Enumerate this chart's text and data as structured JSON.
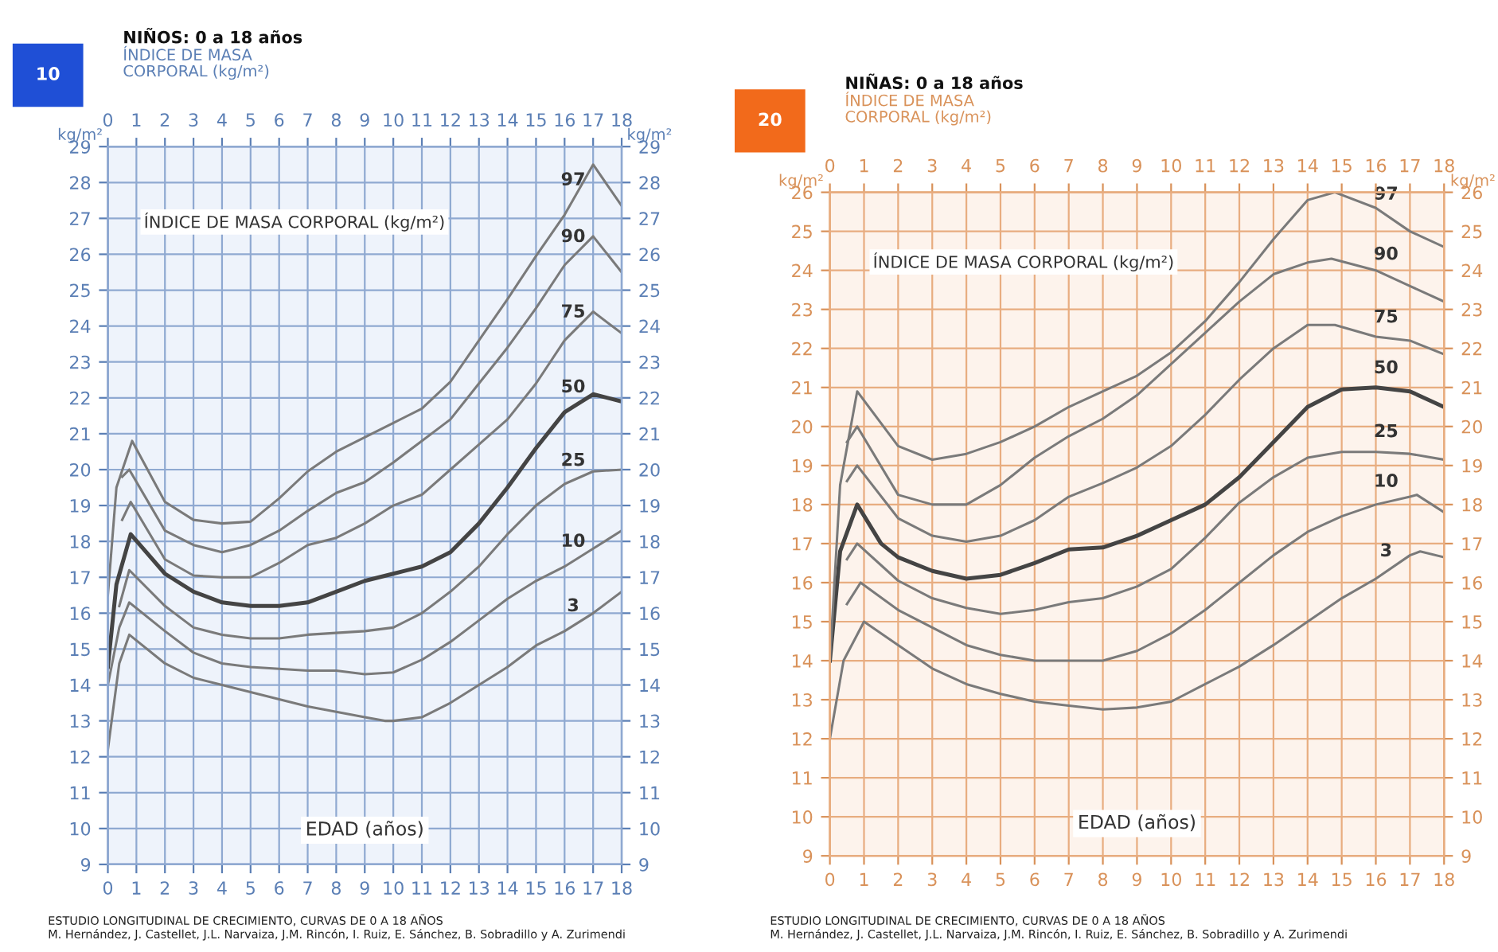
{
  "chart_data": [
    {
      "type": "line",
      "title": "NIÑOS: 0 a 18 años",
      "subtitle": "ÍNDICE DE MASA\nCORPORAL (kg/m²)",
      "xlabel": "EDAD (años)",
      "ylabel": "kg/m²",
      "y2label": "kg/m²",
      "annotations": [
        "10",
        "ÍNDICE DE MASA CORPORAL (kg/m²)",
        "ESTUDIO LONGITUDINAL DE CRECIMIENTO, CURVAS DE 0 A 18 AÑOS\nM. Hernández, J. Castellet, J.L. Narvaiza, J.M. Rincón, I. Ruiz, E. Sánchez, B. Sobradillo y A. Zurimendi"
      ],
      "xlim": [
        0,
        18
      ],
      "xticks": [
        0,
        1,
        2,
        3,
        4,
        5,
        6,
        7,
        8,
        9,
        10,
        11,
        12,
        13,
        14,
        15,
        16,
        17,
        18
      ],
      "x2lim": [
        0,
        18
      ],
      "x2ticks": [
        0,
        1,
        2,
        3,
        4,
        5,
        6,
        7,
        8,
        9,
        10,
        11,
        12,
        13,
        14,
        15,
        16,
        17,
        18
      ],
      "ylim": [
        9,
        29
      ],
      "yticks": [
        9,
        10,
        11,
        12,
        13,
        14,
        15,
        16,
        17,
        18,
        19,
        20,
        21,
        22,
        23,
        24,
        25,
        26,
        27,
        28,
        29
      ],
      "y2lim": [
        9,
        29
      ],
      "y2ticks": [
        9,
        10,
        11,
        12,
        13,
        14,
        15,
        16,
        17,
        18,
        19,
        20,
        21,
        22,
        23,
        24,
        25,
        26,
        27,
        28,
        29
      ],
      "grid": true,
      "marker": "none",
      "line_style": "solid",
      "series": [
        {
          "name": "3",
          "color": "#7a7a7a",
          "x": [
            0,
            0.4,
            0.75,
            2,
            3,
            4,
            5,
            6,
            7,
            8,
            9,
            9.7,
            10,
            11,
            12,
            13,
            14,
            15,
            16,
            17,
            18
          ],
          "values": [
            12.2,
            14.6,
            15.4,
            14.6,
            14.2,
            14.0,
            13.8,
            13.6,
            13.4,
            13.25,
            13.1,
            13.0,
            13.0,
            13.1,
            13.5,
            14.0,
            14.5,
            15.1,
            15.5,
            16.0,
            16.6
          ]
        },
        {
          "name": "10",
          "color": "#7a7a7a",
          "x": [
            0,
            0.4,
            0.75,
            2,
            3,
            4,
            5,
            6,
            7,
            8,
            9,
            10,
            11,
            12,
            13,
            14,
            15,
            16,
            17,
            18
          ],
          "values": [
            14.0,
            15.6,
            16.3,
            15.5,
            14.9,
            14.6,
            14.5,
            14.45,
            14.4,
            14.4,
            14.3,
            14.35,
            14.7,
            15.2,
            15.8,
            16.4,
            16.9,
            17.3,
            17.8,
            18.3
          ]
        },
        {
          "name": "25",
          "color": "#7a7a7a",
          "x": [
            0.4,
            0.75,
            2,
            3,
            4,
            5,
            6,
            7,
            8,
            9,
            10,
            11,
            12,
            13,
            14,
            15,
            16,
            17,
            18
          ],
          "values": [
            16.2,
            17.2,
            16.2,
            15.6,
            15.4,
            15.3,
            15.3,
            15.4,
            15.45,
            15.5,
            15.6,
            16.0,
            16.6,
            17.3,
            18.2,
            19.0,
            19.6,
            19.95,
            20.0
          ]
        },
        {
          "name": "50",
          "color": "#444444",
          "x": [
            0,
            0.3,
            0.8,
            2,
            3,
            4,
            5,
            6,
            7,
            8,
            9,
            10,
            11,
            12,
            13,
            14,
            15,
            16,
            17,
            18
          ],
          "values": [
            14.5,
            16.8,
            18.2,
            17.1,
            16.6,
            16.3,
            16.2,
            16.2,
            16.3,
            16.6,
            16.9,
            17.1,
            17.3,
            17.7,
            18.5,
            19.5,
            20.6,
            21.6,
            22.1,
            21.9
          ]
        },
        {
          "name": "75",
          "color": "#7a7a7a",
          "x": [
            0.5,
            0.8,
            2,
            3,
            4,
            5,
            6,
            7,
            8,
            9,
            10,
            11,
            12,
            13,
            14,
            15,
            16,
            17,
            18
          ],
          "values": [
            18.6,
            19.1,
            17.5,
            17.05,
            17.0,
            17.0,
            17.4,
            17.9,
            18.1,
            18.5,
            19.0,
            19.3,
            20.0,
            20.7,
            21.4,
            22.4,
            23.6,
            24.4,
            23.8
          ]
        },
        {
          "name": "90",
          "color": "#7a7a7a",
          "x": [
            0.5,
            0.75,
            2,
            3,
            4,
            5,
            6,
            7,
            8,
            9,
            10,
            11,
            12,
            13,
            14,
            15,
            16,
            17,
            18
          ],
          "values": [
            19.8,
            20.0,
            18.3,
            17.9,
            17.7,
            17.9,
            18.3,
            18.85,
            19.35,
            19.65,
            20.2,
            20.8,
            21.4,
            22.4,
            23.4,
            24.5,
            25.7,
            26.5,
            25.5
          ]
        },
        {
          "name": "97",
          "color": "#7a7a7a",
          "x": [
            0,
            0.3,
            0.85,
            2,
            3,
            4,
            5,
            6,
            7,
            8,
            9,
            10,
            11,
            12,
            13,
            14,
            15,
            16,
            17,
            18
          ],
          "values": [
            16.5,
            19.5,
            20.8,
            19.1,
            18.6,
            18.5,
            18.55,
            19.2,
            19.95,
            20.5,
            20.9,
            21.3,
            21.7,
            22.45,
            23.6,
            24.75,
            25.95,
            27.1,
            28.5,
            27.35
          ]
        }
      ]
    },
    {
      "type": "line",
      "title": "NIÑAS: 0 a 18 años",
      "subtitle": "ÍNDICE DE MASA\nCORPORAL (kg/m²)",
      "xlabel": "EDAD (años)",
      "ylabel": "kg/m²",
      "y2label": "kg/m²",
      "annotations": [
        "20",
        "ÍNDICE DE MASA CORPORAL (kg/m²)",
        "ESTUDIO LONGITUDINAL DE CRECIMIENTO, CURVAS DE 0 A 18 AÑOS\nM. Hernández, J. Castellet, J.L. Narvaiza, J.M. Rincón, I. Ruiz, E. Sánchez, B. Sobradillo y A. Zurimendi"
      ],
      "xlim": [
        0,
        18
      ],
      "xticks": [
        0,
        1,
        2,
        3,
        4,
        5,
        6,
        7,
        8,
        9,
        10,
        11,
        12,
        13,
        14,
        15,
        16,
        17,
        18
      ],
      "x2lim": [
        0,
        18
      ],
      "x2ticks": [
        0,
        1,
        2,
        3,
        4,
        5,
        6,
        7,
        8,
        9,
        10,
        11,
        12,
        13,
        14,
        15,
        16,
        17,
        18
      ],
      "ylim": [
        9,
        26
      ],
      "yticks": [
        9,
        10,
        11,
        12,
        13,
        14,
        15,
        16,
        17,
        18,
        19,
        20,
        21,
        22,
        23,
        24,
        25,
        26
      ],
      "y2lim": [
        9,
        26
      ],
      "y2ticks": [
        9,
        10,
        11,
        12,
        13,
        14,
        15,
        16,
        17,
        18,
        19,
        20,
        21,
        22,
        23,
        24,
        25,
        26
      ],
      "grid": true,
      "marker": "none",
      "line_style": "solid",
      "series": [
        {
          "name": "3",
          "color": "#7a7a7a",
          "x": [
            0,
            0.4,
            1,
            2,
            3,
            4,
            5,
            6,
            7,
            8,
            9,
            10,
            11,
            12,
            13,
            14,
            15,
            16,
            17,
            17.3,
            18
          ],
          "values": [
            12.0,
            14.0,
            15.0,
            14.4,
            13.8,
            13.4,
            13.15,
            12.95,
            12.85,
            12.75,
            12.8,
            12.95,
            13.4,
            13.85,
            14.4,
            15.0,
            15.6,
            16.1,
            16.7,
            16.8,
            16.65
          ]
        },
        {
          "name": "10",
          "color": "#7a7a7a",
          "x": [
            0.5,
            0.9,
            2,
            3,
            4,
            5,
            6,
            7,
            8,
            9,
            10,
            11,
            12,
            13,
            14,
            15,
            16,
            17,
            17.2,
            18
          ],
          "values": [
            15.45,
            16.0,
            15.3,
            14.85,
            14.4,
            14.15,
            14.0,
            14.0,
            14.0,
            14.25,
            14.7,
            15.3,
            16.0,
            16.7,
            17.3,
            17.7,
            18.0,
            18.2,
            18.25,
            17.8
          ]
        },
        {
          "name": "25",
          "color": "#7a7a7a",
          "x": [
            0.5,
            0.8,
            2,
            3,
            4,
            5,
            6,
            7,
            8,
            9,
            10,
            11,
            12,
            13,
            14,
            15,
            16,
            17,
            18
          ],
          "values": [
            16.6,
            17.0,
            16.05,
            15.6,
            15.35,
            15.2,
            15.3,
            15.5,
            15.6,
            15.9,
            16.35,
            17.15,
            18.05,
            18.7,
            19.2,
            19.35,
            19.35,
            19.3,
            19.15
          ]
        },
        {
          "name": "50",
          "color": "#444444",
          "x": [
            0,
            0.3,
            0.8,
            1.5,
            2,
            3,
            4,
            5,
            6,
            7,
            8,
            9,
            10,
            11,
            12,
            13,
            14,
            15,
            16,
            17,
            18
          ],
          "values": [
            14.0,
            16.8,
            18.0,
            17.0,
            16.65,
            16.3,
            16.1,
            16.2,
            16.5,
            16.85,
            16.9,
            17.2,
            17.6,
            18.0,
            18.7,
            19.6,
            20.5,
            20.95,
            21.0,
            20.9,
            20.5
          ]
        },
        {
          "name": "75",
          "color": "#7a7a7a",
          "x": [
            0.5,
            0.8,
            2,
            3,
            4,
            5,
            6,
            7,
            8,
            9,
            10,
            11,
            12,
            13,
            14,
            14.8,
            16,
            17,
            18
          ],
          "values": [
            18.6,
            19.0,
            17.65,
            17.2,
            17.05,
            17.2,
            17.6,
            18.2,
            18.55,
            18.95,
            19.5,
            20.3,
            21.2,
            22.0,
            22.6,
            22.6,
            22.3,
            22.2,
            21.85
          ]
        },
        {
          "name": "90",
          "color": "#7a7a7a",
          "x": [
            0.5,
            0.8,
            2,
            3,
            4,
            5,
            6,
            7,
            8,
            9,
            10,
            11,
            12,
            13,
            14,
            14.7,
            16,
            17,
            18
          ],
          "values": [
            19.6,
            20.0,
            18.25,
            18.0,
            18.0,
            18.5,
            19.2,
            19.75,
            20.2,
            20.8,
            21.6,
            22.4,
            23.2,
            23.9,
            24.2,
            24.3,
            24.0,
            23.6,
            23.2
          ]
        },
        {
          "name": "97",
          "color": "#7a7a7a",
          "x": [
            0,
            0.3,
            0.8,
            2,
            3,
            4,
            5,
            6,
            7,
            8,
            9,
            10,
            11,
            12,
            13,
            14,
            14.8,
            16,
            17,
            18
          ],
          "values": [
            14.0,
            18.5,
            20.9,
            19.5,
            19.15,
            19.3,
            19.6,
            20.0,
            20.5,
            20.9,
            21.3,
            21.9,
            22.7,
            23.7,
            24.8,
            25.8,
            26.0,
            25.6,
            25.0,
            24.6
          ]
        }
      ]
    }
  ]
}
